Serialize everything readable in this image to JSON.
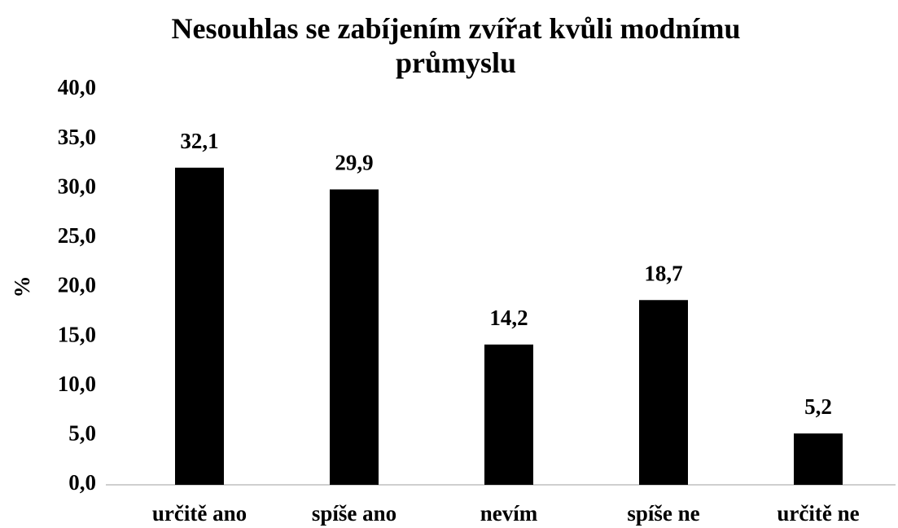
{
  "chart_data": {
    "type": "bar",
    "title": "Nesouhlas se zabíjením zvířat kvůli modnímu průmyslu",
    "y_label": "%",
    "categories": [
      "určitě ano",
      "spíše ano",
      "nevím",
      "spíše ne",
      "určitě ne"
    ],
    "values": [
      32.1,
      29.9,
      14.2,
      18.7,
      5.2
    ],
    "value_labels": [
      "32,1",
      "29,9",
      "14,2",
      "18,7",
      "5,2"
    ],
    "color": "#000000",
    "ylim": [
      0,
      40
    ],
    "yticks": [
      {
        "value": 0,
        "label": "0,0"
      },
      {
        "value": 5,
        "label": "5,0"
      },
      {
        "value": 10,
        "label": "10,0"
      },
      {
        "value": 15,
        "label": "15,0"
      },
      {
        "value": 20,
        "label": "20,0"
      },
      {
        "value": 25,
        "label": "25,0"
      },
      {
        "value": 30,
        "label": "30,0"
      },
      {
        "value": 35,
        "label": "35,0"
      },
      {
        "value": 40,
        "label": "40,0"
      }
    ],
    "grid": false
  }
}
